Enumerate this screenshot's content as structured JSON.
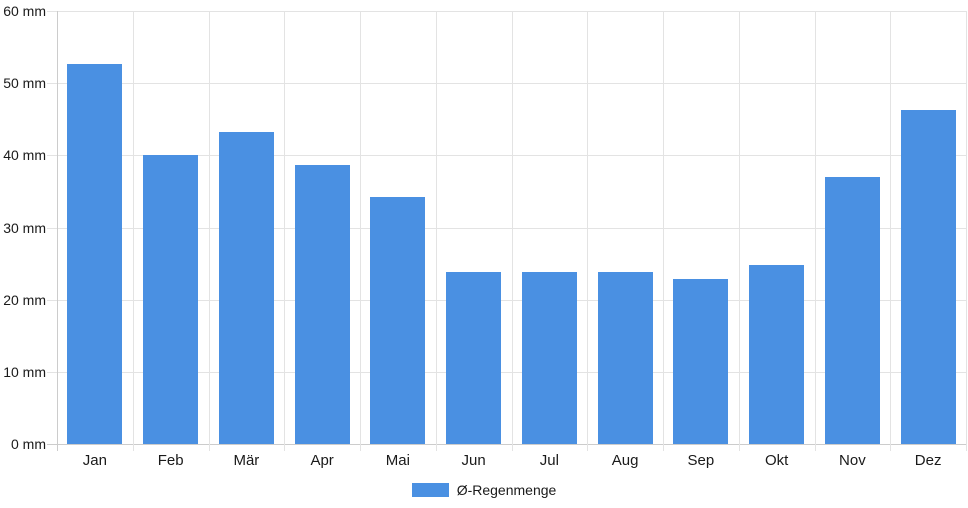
{
  "chart_data": {
    "type": "bar",
    "title": "",
    "categories": [
      "Jan",
      "Feb",
      "Mär",
      "Apr",
      "Mai",
      "Jun",
      "Jul",
      "Aug",
      "Sep",
      "Okt",
      "Nov",
      "Dez"
    ],
    "values": [
      52.7,
      40.0,
      43.2,
      38.7,
      34.2,
      23.9,
      23.8,
      23.8,
      22.8,
      24.8,
      37.0,
      46.3
    ],
    "series_name": "Ø-Regenmenge",
    "unit": "mm",
    "xlabel": "",
    "ylabel": "",
    "ylim": [
      0,
      60
    ],
    "y_tick_step": 10,
    "y_tick_labels": [
      "0 mm",
      "10 mm",
      "20 mm",
      "30 mm",
      "40 mm",
      "50 mm",
      "60 mm"
    ],
    "grid": "on",
    "legend_position": "bottom-center",
    "colors": {
      "bar": "#4a90e2",
      "gridline": "#e3e3e3",
      "axis": "#cccccc",
      "text": "#1a1a1a"
    }
  }
}
